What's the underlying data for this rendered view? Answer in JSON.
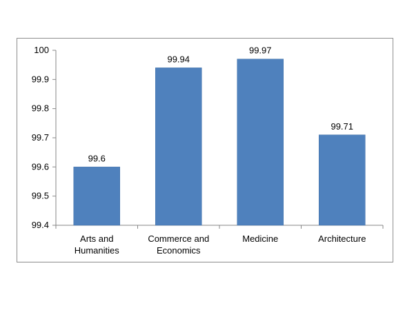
{
  "chart_data": {
    "type": "bar",
    "categories": [
      [
        "Arts and",
        "Humanities"
      ],
      [
        "Commerce and",
        "Economics"
      ],
      [
        "Medicine"
      ],
      [
        "Architecture"
      ]
    ],
    "values": [
      99.6,
      99.94,
      99.97,
      99.71
    ],
    "value_labels": [
      "99.6",
      "99.94",
      "99.97",
      "99.71"
    ],
    "ylim": [
      99.4,
      100
    ],
    "yticks": [
      "99.4",
      "99.5",
      "99.6",
      "99.7",
      "99.8",
      "99.9",
      "100"
    ],
    "grid": false,
    "legend": "none",
    "colors": {
      "bar": "#4f81bd",
      "bar_edge": "#3f6fa8",
      "axis": "#868686",
      "text": "#000000",
      "frame": "#8c8c8c"
    }
  }
}
